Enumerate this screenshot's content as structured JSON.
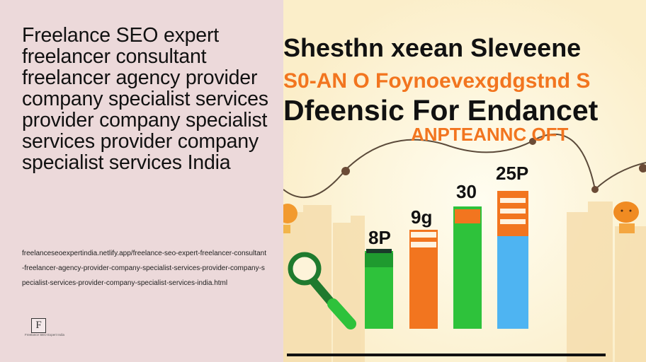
{
  "page": {
    "title": "Freelance SEO expert freelancer consultant freelancer agency provider company specialist services provider company specialist services provider company specialist services India",
    "url": "freelanceseoexpertindia.netlify.app/freelance-seo-expert-freelancer-consultant-freelancer-agency-provider-company-specialist-services-provider-company-specialist-services-provider-company-specialist-services-india.html"
  },
  "logo": {
    "letter": "F",
    "caption": "Freelance SEO Expert India"
  },
  "illustration": {
    "headline_1": "Shesthn xeean Sleveene",
    "headline_2": "S0-AN O Foynoevexgdgstnd S",
    "headline_3": "Dfeensic For Endancet",
    "headline_4": "ANPTEANNC OFT",
    "bar_labels": [
      "8P",
      "9g",
      "30",
      "25P"
    ],
    "colors": {
      "background": "#fdf3d9",
      "sun_glow": "#fffbe8",
      "skyline": "#f7e2b3",
      "headline": "#111111",
      "accent_orange": "#f2751f",
      "green": "#2ec23b",
      "blue": "#4eb4f2",
      "dark_green": "#1f7a2e"
    }
  }
}
